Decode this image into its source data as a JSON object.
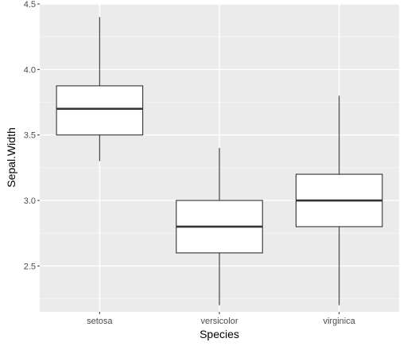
{
  "chart_data": {
    "type": "boxplot",
    "title": "",
    "xlabel": "Species",
    "ylabel": "Sepal.Width",
    "categories": [
      "setosa",
      "versicolor",
      "virginica"
    ],
    "boxes": [
      {
        "category": "setosa",
        "whisker_low": 3.3,
        "q1": 3.5,
        "median": 3.7,
        "q3": 3.875,
        "whisker_high": 4.4
      },
      {
        "category": "versicolor",
        "whisker_low": 2.2,
        "q1": 2.6,
        "median": 2.8,
        "q3": 3.0,
        "whisker_high": 3.4
      },
      {
        "category": "virginica",
        "whisker_low": 2.2,
        "q1": 2.8,
        "median": 3.0,
        "q3": 3.2,
        "whisker_high": 3.8
      }
    ],
    "ylim": [
      2.15,
      4.5
    ],
    "y_ticks": [
      2.5,
      3.0,
      3.5,
      4.0,
      4.5
    ],
    "y_tick_labels": [
      "2.5",
      "3.0",
      "3.5",
      "4.0",
      "4.5"
    ],
    "grid": true,
    "colors": {
      "panel_background": "#ebebeb",
      "grid_major": "#ffffff",
      "grid_minor": "#f5f5f5",
      "box_fill": "#ffffff",
      "box_stroke": "#333333",
      "tick_text": "#4d4d4d"
    }
  }
}
